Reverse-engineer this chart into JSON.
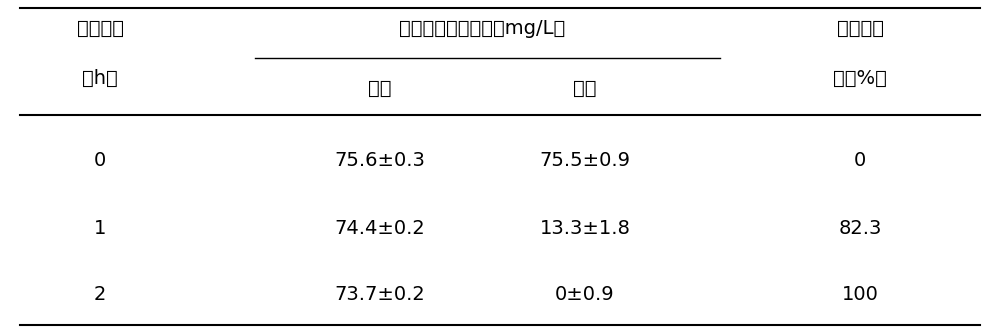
{
  "col1_header_line1": "降解时间",
  "col1_header_line2": "（h）",
  "col2_header_line1": "青霉素的残留浓度（mg/L）",
  "col2_sub1": "对照",
  "col2_sub2": "处理",
  "col3_header_line1": "平均降解",
  "col3_header_line2": "率（%）",
  "rows": [
    [
      "0",
      "75.6±0.3",
      "75.5±0.9",
      "0"
    ],
    [
      "1",
      "74.4±0.2",
      "13.3±1.8",
      "82.3"
    ],
    [
      "2",
      "73.7±0.2",
      "0±0.9",
      "100"
    ]
  ],
  "bg_color": "#ffffff",
  "text_color": "#000000",
  "font_size": 14,
  "header_font_size": 14
}
